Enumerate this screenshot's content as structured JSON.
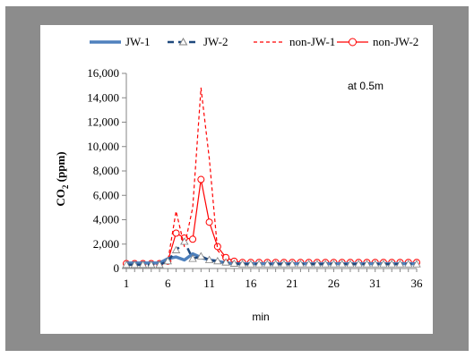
{
  "chart_data": {
    "type": "line",
    "title": "",
    "annotation": "at 0.5m",
    "xlabel": "min",
    "ylabel_main": "CO",
    "ylabel_sub": "2",
    "ylabel_unit": " (ppm)",
    "xlim": [
      1,
      36
    ],
    "ylim": [
      0,
      16000
    ],
    "x_ticks": [
      1,
      6,
      11,
      16,
      21,
      26,
      31,
      36
    ],
    "y_ticks": [
      0,
      2000,
      4000,
      6000,
      8000,
      10000,
      12000,
      14000,
      16000
    ],
    "y_tick_labels": [
      "0",
      "2,000",
      "4,000",
      "6,000",
      "8,000",
      "10,000",
      "12,000",
      "14,000",
      "16,000"
    ],
    "grid": false,
    "legend_position": "top",
    "x": [
      1,
      2,
      3,
      4,
      5,
      6,
      7,
      8,
      9,
      10,
      11,
      12,
      13,
      14,
      15,
      16,
      17,
      18,
      19,
      20,
      21,
      22,
      23,
      24,
      25,
      26,
      27,
      28,
      29,
      30,
      31,
      32,
      33,
      34,
      35,
      36
    ],
    "series": [
      {
        "name": "JW-1",
        "color": "#4f81bd",
        "style": "solid-thick",
        "values": [
          450,
          450,
          450,
          450,
          450,
          800,
          950,
          700,
          1200,
          900,
          700,
          600,
          450,
          400,
          400,
          400,
          400,
          400,
          400,
          400,
          400,
          400,
          400,
          400,
          400,
          400,
          400,
          400,
          400,
          400,
          400,
          400,
          400,
          400,
          400,
          400
        ]
      },
      {
        "name": "JW-2",
        "color": "#1f497d",
        "style": "dash-triangle",
        "values": [
          300,
          300,
          300,
          300,
          300,
          600,
          1500,
          2200,
          800,
          1000,
          700,
          600,
          500,
          400,
          350,
          350,
          350,
          350,
          350,
          350,
          350,
          350,
          350,
          350,
          350,
          350,
          350,
          350,
          350,
          350,
          350,
          350,
          350,
          350,
          350,
          350
        ]
      },
      {
        "name": "non-JW-1",
        "color": "#ff0000",
        "style": "dashed",
        "values": [
          400,
          400,
          400,
          400,
          400,
          600,
          4700,
          1800,
          5000,
          14800,
          9000,
          1500,
          700,
          500,
          450,
          450,
          450,
          450,
          450,
          450,
          450,
          450,
          450,
          450,
          450,
          450,
          450,
          450,
          450,
          450,
          450,
          450,
          450,
          450,
          450,
          450
        ]
      },
      {
        "name": "non-JW-2",
        "color": "#ff0000",
        "style": "solid-circle",
        "values": [
          400,
          400,
          400,
          400,
          400,
          600,
          2900,
          2500,
          2400,
          7300,
          3800,
          1800,
          900,
          600,
          500,
          500,
          500,
          500,
          500,
          500,
          500,
          500,
          500,
          500,
          500,
          500,
          500,
          500,
          500,
          500,
          500,
          500,
          500,
          500,
          500,
          500
        ]
      }
    ]
  }
}
